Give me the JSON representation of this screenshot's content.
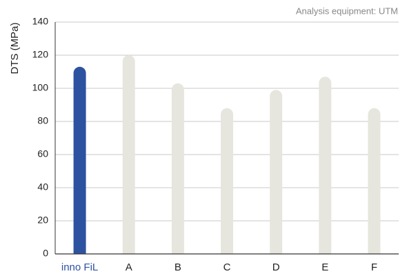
{
  "chart_data": {
    "type": "bar",
    "annotation": "Analysis equipment: UTM",
    "ylabel": "DTS (MPa)",
    "categories": [
      "inno FiL",
      "A",
      "B",
      "C",
      "D",
      "E",
      "F"
    ],
    "values": [
      113,
      120,
      103,
      88,
      99,
      107,
      88
    ],
    "colors": [
      "#2d52a0",
      "#e6e6df",
      "#e6e6df",
      "#e6e6df",
      "#e6e6df",
      "#e6e6df",
      "#e6e6df"
    ],
    "label_colors": [
      "#2d52a0",
      "#222222",
      "#222222",
      "#222222",
      "#222222",
      "#222222",
      "#222222"
    ],
    "ylim": [
      0,
      140
    ],
    "yticks": [
      0,
      20,
      40,
      60,
      80,
      100,
      120,
      140
    ],
    "grid": true
  }
}
